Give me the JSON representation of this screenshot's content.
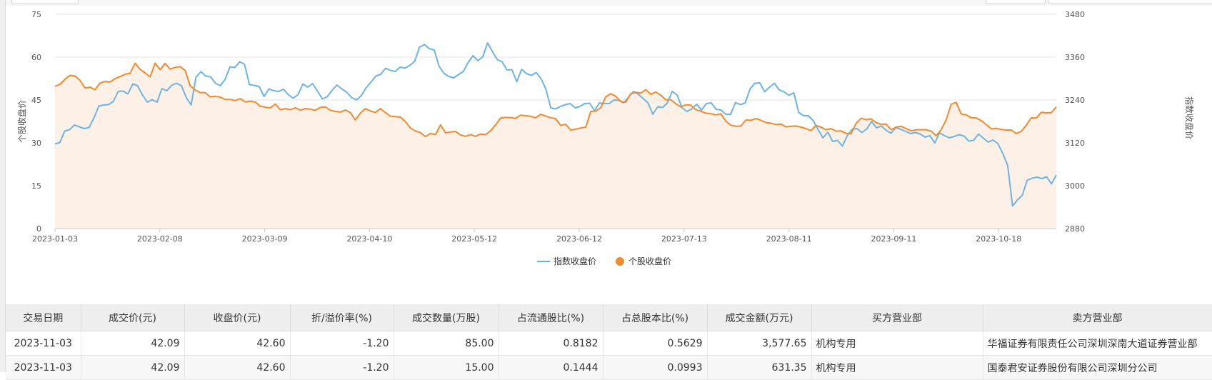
{
  "chart_data": {
    "type": "line",
    "x_ticks": [
      "2023-01-03",
      "2023-02-08",
      "2023-03-09",
      "2023-04-10",
      "2023-05-12",
      "2023-06-12",
      "2023-07-13",
      "2023-08-11",
      "2023-09-11",
      "2023-10-18"
    ],
    "y_left": {
      "label": "个股收盘价",
      "ticks": [
        0,
        15,
        30,
        45,
        60,
        75
      ],
      "range": [
        0,
        75
      ]
    },
    "y_right": {
      "label": "指数收盘价",
      "ticks": [
        2880,
        3000,
        3120,
        3240,
        3360,
        3480
      ],
      "range": [
        2880,
        3480
      ]
    },
    "legend_position": "bottom-center",
    "series": [
      {
        "name": "指数收盘价",
        "axis": "right",
        "color": "#6cb4e4",
        "values": [
          3117,
          3121,
          3153,
          3157,
          3170,
          3165,
          3160,
          3163,
          3189,
          3223,
          3226,
          3227,
          3236,
          3264,
          3265,
          3257,
          3285,
          3280,
          3254,
          3234,
          3241,
          3234,
          3272,
          3266,
          3281,
          3287,
          3280,
          3247,
          3226,
          3304,
          3319,
          3307,
          3305,
          3287,
          3280,
          3298,
          3333,
          3331,
          3347,
          3340,
          3283,
          3281,
          3278,
          3250,
          3271,
          3266,
          3264,
          3270,
          3255,
          3245,
          3255,
          3285,
          3276,
          3286,
          3265,
          3243,
          3249,
          3267,
          3282,
          3271,
          3262,
          3247,
          3240,
          3252,
          3274,
          3290,
          3307,
          3312,
          3329,
          3323,
          3320,
          3332,
          3329,
          3337,
          3348,
          3388,
          3395,
          3384,
          3380,
          3335,
          3315,
          3306,
          3302,
          3311,
          3320,
          3345,
          3364,
          3350,
          3361,
          3400,
          3375,
          3353,
          3347,
          3324,
          3325,
          3291,
          3326,
          3314,
          3309,
          3317,
          3300,
          3270,
          3218,
          3215,
          3222,
          3227,
          3230,
          3218,
          3222,
          3230,
          3231,
          3210,
          3232,
          3230,
          3230,
          3240,
          3239,
          3232,
          3248,
          3264,
          3256,
          3244,
          3232,
          3200,
          3221,
          3219,
          3232,
          3264,
          3254,
          3218,
          3208,
          3215,
          3228,
          3212,
          3230,
          3232,
          3214,
          3212,
          3200,
          3200,
          3233,
          3227,
          3232,
          3271,
          3287,
          3288,
          3263,
          3276,
          3287,
          3268,
          3263,
          3253,
          3260,
          3205,
          3196,
          3196,
          3182,
          3157,
          3134,
          3150,
          3124,
          3127,
          3111,
          3140,
          3158,
          3160,
          3149,
          3159,
          3180,
          3162,
          3167,
          3155,
          3147,
          3163,
          3158,
          3152,
          3146,
          3149,
          3145,
          3136,
          3140,
          3120,
          3148,
          3140,
          3134,
          3138,
          3143,
          3139,
          3125,
          3127,
          3145,
          3133,
          3122,
          3128,
          3118,
          3090,
          3057,
          2943,
          2960,
          2973,
          3015,
          3021,
          3024,
          3020,
          3025,
          3005,
          3030
        ]
      },
      {
        "name": "个股收盘价",
        "axis": "left",
        "color": "#f28a2e",
        "values": [
          49.8,
          50.5,
          52.3,
          53.6,
          53.4,
          51.9,
          49.2,
          49.5,
          48.6,
          50.9,
          51.5,
          51.3,
          52.5,
          53.2,
          54.0,
          54.4,
          57.9,
          55.7,
          54.5,
          53.1,
          57.9,
          55.6,
          57.8,
          55.8,
          56.4,
          56.7,
          55.3,
          50.0,
          48.5,
          47.6,
          47.6,
          46.1,
          46.3,
          46.0,
          45.2,
          45.2,
          44.8,
          45.5,
          44.3,
          44.6,
          44.3,
          42.8,
          42.5,
          42.2,
          43.6,
          41.6,
          42.0,
          41.6,
          42.3,
          41.4,
          42.0,
          41.8,
          41.4,
          42.4,
          42.6,
          41.4,
          41.0,
          40.8,
          41.5,
          40.6,
          38.0,
          40.4,
          42.0,
          41.2,
          40.6,
          42.0,
          40.6,
          39.3,
          39.2,
          39.0,
          37.4,
          35.2,
          34.1,
          33.6,
          32.2,
          33.3,
          32.9,
          36.3,
          33.5,
          33.8,
          34.0,
          32.8,
          32.3,
          32.9,
          32.3,
          33.1,
          32.9,
          34.2,
          36.3,
          38.7,
          38.9,
          38.8,
          38.6,
          39.7,
          39.5,
          39.3,
          38.8,
          40.0,
          39.4,
          38.8,
          38.5,
          36.1,
          36.5,
          34.5,
          34.8,
          35.2,
          35.5,
          41.0,
          41.1,
          42.3,
          46.1,
          47.2,
          46.3,
          44.5,
          44.2,
          47.2,
          47.7,
          47.4,
          48.6,
          47.0,
          47.8,
          46.7,
          45.1,
          45.1,
          43.7,
          42.6,
          43.3,
          43.2,
          41.6,
          41.1,
          40.4,
          40.2,
          39.8,
          40.2,
          37.6,
          36.2,
          35.8,
          35.9,
          38.0,
          37.9,
          38.5,
          37.9,
          37.1,
          36.9,
          36.4,
          36.6,
          35.6,
          35.8,
          35.9,
          35.5,
          35.0,
          34.3,
          36.1,
          35.5,
          34.6,
          35.0,
          34.1,
          34.2,
          33.3,
          33.2,
          36.8,
          38.6,
          38.1,
          38.4,
          37.1,
          36.5,
          36.6,
          34.6,
          35.5,
          35.8,
          35.0,
          34.2,
          34.6,
          34.6,
          34.6,
          34.1,
          32.5,
          34.6,
          38.1,
          43.5,
          44.2,
          40.1,
          39.8,
          38.8,
          38.7,
          37.8,
          36.4,
          34.9,
          35.1,
          34.7,
          34.5,
          34.5,
          33.3,
          34.0,
          36.2,
          38.8,
          38.7,
          40.7,
          40.5,
          40.6,
          42.6
        ]
      }
    ]
  },
  "legend": [
    {
      "label": "指数收盘价",
      "color": "#6cb4e4"
    },
    {
      "label": "个股收盘价",
      "color": "#f28a2e"
    }
  ],
  "table": {
    "headers": [
      "交易日期",
      "成交价(元)",
      "收盘价(元)",
      "折/溢价率(%)",
      "成交数量(万股)",
      "占流通股比(%)",
      "占总股本比(%)",
      "成交金额(万元)",
      "买方营业部",
      "卖方营业部"
    ],
    "rows": [
      [
        "2023-11-03",
        "42.09",
        "42.60",
        "-1.20",
        "85.00",
        "0.8182",
        "0.5629",
        "3,577.65",
        "机构专用",
        "华福证券有限责任公司深圳深南大道证券营业部"
      ],
      [
        "2023-11-03",
        "42.09",
        "42.60",
        "-1.20",
        "15.00",
        "0.1444",
        "0.0993",
        "631.35",
        "机构专用",
        "国泰君安证券股份有限公司深圳分公司"
      ]
    ]
  }
}
